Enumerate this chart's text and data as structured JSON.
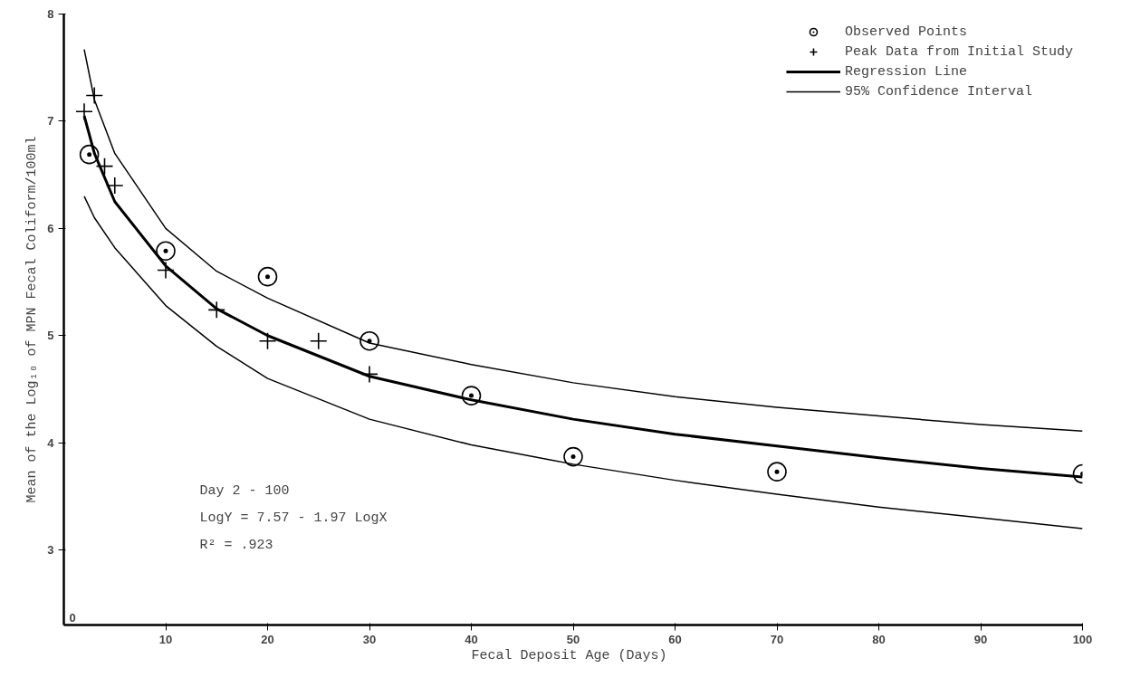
{
  "chart_data": {
    "type": "scatter",
    "xlabel": "Fecal Deposit Age  (Days)",
    "ylabel": "Mean of the Log₁₀ of MPN Fecal Coliform/100ml",
    "xlim": [
      0,
      100
    ],
    "xticks": [
      10,
      20,
      30,
      40,
      50,
      60,
      70,
      80,
      90,
      100
    ],
    "ylim": [
      2.3,
      8
    ],
    "yticks": [
      3,
      4,
      5,
      6,
      7,
      8
    ],
    "grid": false,
    "legend": "top right",
    "series": [
      {
        "name": "Observed Points",
        "marker": "circle",
        "color": "#000000",
        "x": [
          2.5,
          10,
          20,
          30,
          40,
          50,
          70,
          100
        ],
        "values": [
          6.69,
          5.79,
          5.55,
          4.95,
          4.44,
          3.87,
          3.73,
          3.71
        ]
      },
      {
        "name": "Peak Data from Initial Study",
        "marker": "cross",
        "color": "#000000",
        "x": [
          2,
          3,
          4,
          5,
          10,
          15,
          20,
          25,
          30
        ],
        "values": [
          7.09,
          7.24,
          6.58,
          6.4,
          5.61,
          5.24,
          4.95,
          4.95,
          4.64
        ]
      },
      {
        "name": "Regression Line",
        "type": "line",
        "line_style": "solid",
        "color": "#000000",
        "x": [
          2,
          3,
          5,
          10,
          15,
          20,
          30,
          40,
          50,
          60,
          70,
          80,
          90,
          100
        ],
        "values": [
          7.05,
          6.7,
          6.25,
          5.65,
          5.25,
          5.0,
          4.62,
          4.4,
          4.22,
          4.08,
          3.97,
          3.86,
          3.76,
          3.68
        ]
      },
      {
        "name": "95% Confidence Interval",
        "type": "line",
        "line_style": "solid",
        "color": "#000000",
        "x": [
          2,
          3,
          5,
          10,
          15,
          20,
          30,
          40,
          50,
          60,
          70,
          80,
          90,
          100
        ],
        "values": [
          7.67,
          7.2,
          6.7,
          6.0,
          5.6,
          5.35,
          4.93,
          4.73,
          4.56,
          4.43,
          4.33,
          4.25,
          4.17,
          4.11
        ]
      },
      {
        "type": "line",
        "line_style": "solid",
        "color": "#000000",
        "x": [
          2,
          3,
          5,
          10,
          15,
          20,
          30,
          40,
          50,
          60,
          70,
          80,
          90,
          100
        ],
        "values": [
          6.3,
          6.1,
          5.82,
          5.28,
          4.9,
          4.6,
          4.22,
          3.98,
          3.8,
          3.65,
          3.52,
          3.4,
          3.3,
          3.2
        ]
      }
    ],
    "annotations": [
      "0",
      "Day 2 - 100",
      "LogY = 7.57 - 1.97 LogX",
      "R² = .923"
    ]
  }
}
